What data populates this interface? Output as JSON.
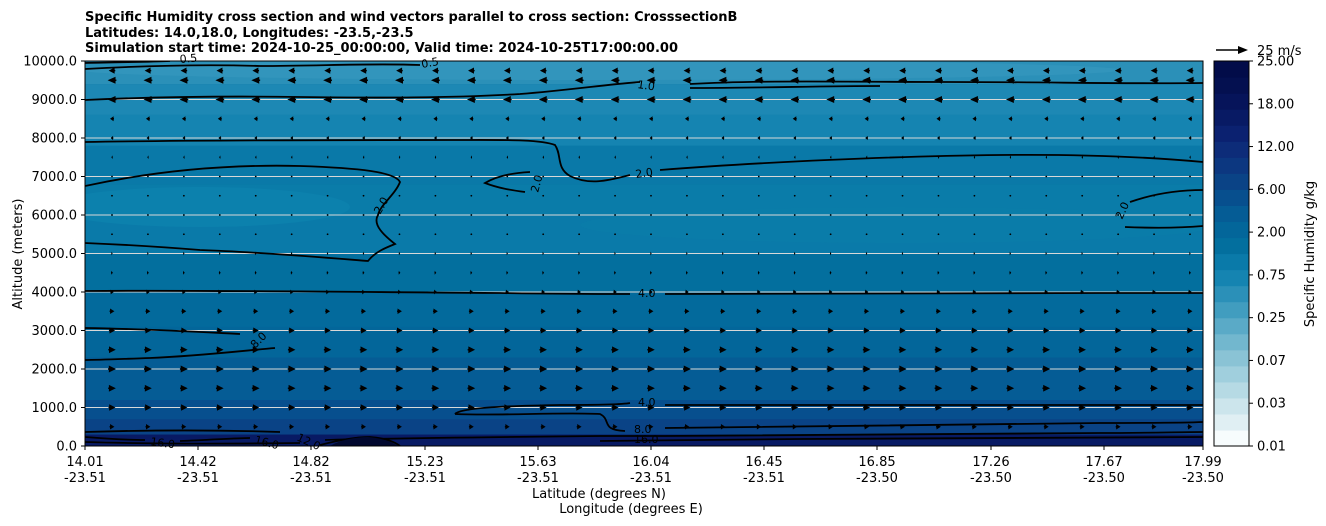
{
  "title_lines": [
    "Specific Humidity cross section and wind vectors parallel to cross section: CrosssectionB",
    "Latitudes: 14.0,18.0, Longitudes: -23.5,-23.5",
    "Simulation start time: 2024-10-25_00:00:00, Valid time: 2024-10-25T17:00:00.00"
  ],
  "chart_data": {
    "type": "heatmap",
    "ylabel": "Altitude (meters)",
    "xlabel_lines": [
      "Latitude (degrees N)",
      "Longitude (degrees E)"
    ],
    "ylim": [
      0,
      10000
    ],
    "y_ticks": [
      "0.0",
      "1000.0",
      "2000.0",
      "3000.0",
      "4000.0",
      "5000.0",
      "6000.0",
      "7000.0",
      "8000.0",
      "9000.0",
      "10000.0"
    ],
    "y_tick_values": [
      0,
      1000,
      2000,
      3000,
      4000,
      5000,
      6000,
      7000,
      8000,
      9000,
      10000
    ],
    "x_ticks": [
      {
        "lat": "14.01",
        "lon": "-23.51"
      },
      {
        "lat": "14.42",
        "lon": "-23.51"
      },
      {
        "lat": "14.82",
        "lon": "-23.51"
      },
      {
        "lat": "15.23",
        "lon": "-23.51"
      },
      {
        "lat": "15.63",
        "lon": "-23.51"
      },
      {
        "lat": "16.04",
        "lon": "-23.51"
      },
      {
        "lat": "16.45",
        "lon": "-23.51"
      },
      {
        "lat": "16.85",
        "lon": "-23.50"
      },
      {
        "lat": "17.26",
        "lon": "-23.50"
      },
      {
        "lat": "17.67",
        "lon": "-23.50"
      },
      {
        "lat": "17.99",
        "lon": "-23.50"
      }
    ],
    "grid": true,
    "colorbar": {
      "label": "Specific Humidity g/kg",
      "tick_labels": [
        "0.01",
        "0.03",
        "0.07",
        "0.25",
        "0.75",
        "2.00",
        "6.00",
        "12.00",
        "18.00",
        "25.00"
      ],
      "colors": [
        "#f7fcfd",
        "#e0eff3",
        "#cce5ec",
        "#b6dae4",
        "#a0cfdd",
        "#8ac3d5",
        "#72b7ce",
        "#5aaac7",
        "#419dbf",
        "#2b90b8",
        "#1584b1",
        "#0a7aa9",
        "#036f9e",
        "#03669a",
        "#055c95",
        "#074f8e",
        "#0a4386",
        "#0c3780",
        "#0d2c79",
        "#0b2170",
        "#081a64",
        "#06145a",
        "#041050",
        "#020c49"
      ]
    },
    "quiver_key": {
      "label": "25 m/s",
      "speed": 25
    },
    "contour_labels": [
      "0.5",
      "1.0",
      "2.0",
      "2.0",
      "2.0",
      "2.0",
      "2.0",
      "4.0",
      "4.0",
      "8.0",
      "8.0",
      "12.0",
      "16.0",
      "16.0",
      "16.0"
    ],
    "humidity_bands": [
      {
        "ymin": 0,
        "ymax": 300,
        "color": "#081a64"
      },
      {
        "ymin": 300,
        "ymax": 700,
        "color": "#0a4386"
      },
      {
        "ymin": 700,
        "ymax": 1200,
        "color": "#074f8e"
      },
      {
        "ymin": 1200,
        "ymax": 2300,
        "color": "#055c95"
      },
      {
        "ymin": 2300,
        "ymax": 3100,
        "color": "#03669a"
      },
      {
        "ymin": 3100,
        "ymax": 4000,
        "color": "#036a9c"
      },
      {
        "ymin": 4000,
        "ymax": 5000,
        "color": "#036f9e"
      },
      {
        "ymin": 5000,
        "ymax": 6000,
        "color": "#0a7aa9"
      },
      {
        "ymin": 6000,
        "ymax": 6800,
        "color": "#0a7ca9"
      },
      {
        "ymin": 6800,
        "ymax": 7800,
        "color": "#0a79a8"
      },
      {
        "ymin": 7800,
        "ymax": 8600,
        "color": "#1584b1"
      },
      {
        "ymin": 8600,
        "ymax": 9400,
        "color": "#1d88b4"
      },
      {
        "ymin": 9400,
        "ymax": 10000,
        "color": "#2b90b8"
      }
    ],
    "wind_rows": [
      {
        "y": 9750,
        "u": -3.0
      },
      {
        "y": 9500,
        "u": -4.0
      },
      {
        "y": 9000,
        "u": -4.0
      },
      {
        "y": 8500,
        "u": -1.8
      },
      {
        "y": 8000,
        "u": -1.2
      },
      {
        "y": 7500,
        "u": -0.6
      },
      {
        "y": 7000,
        "u": -0.2
      },
      {
        "y": 6500,
        "u": 0.1
      },
      {
        "y": 6000,
        "u": 0.2
      },
      {
        "y": 5500,
        "u": 0.4
      },
      {
        "y": 5000,
        "u": 0.6
      },
      {
        "y": 4500,
        "u": 0.8
      },
      {
        "y": 4000,
        "u": 1.5
      },
      {
        "y": 3500,
        "u": 2.2
      },
      {
        "y": 3000,
        "u": 2.8
      },
      {
        "y": 2500,
        "u": 3.4
      },
      {
        "y": 2000,
        "u": 3.6
      },
      {
        "y": 1500,
        "u": 3.5
      },
      {
        "y": 1000,
        "u": 3.2
      },
      {
        "y": 500,
        "u": 2.2
      }
    ],
    "wind_columns": 31
  }
}
